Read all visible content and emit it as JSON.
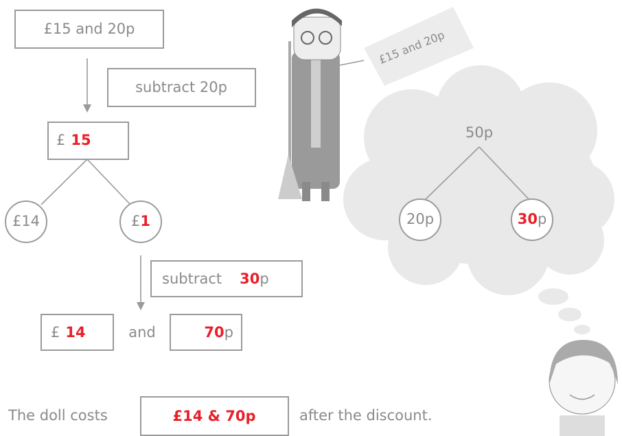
{
  "start_box": "£15 and 20p",
  "step_one": "subtract 20p",
  "pounds_box": {
    "symbol": "£",
    "amount": "15"
  },
  "split": {
    "left": "£14",
    "right": {
      "symbol": "£",
      "amount": "1"
    }
  },
  "step_two": {
    "word": "subtract",
    "amount": "30",
    "unit": "p"
  },
  "result": {
    "pounds_symbol": "£",
    "pounds": "14",
    "joiner": "and",
    "pence": "70",
    "pence_unit": "p"
  },
  "sentence": {
    "before": "The doll costs",
    "answer": "£14 & 70p",
    "after": "after the discount."
  },
  "price_tag": "£15 and 20p",
  "thought": {
    "total": "50p",
    "left": "20p",
    "right": {
      "amount": "30",
      "unit": "p"
    }
  }
}
